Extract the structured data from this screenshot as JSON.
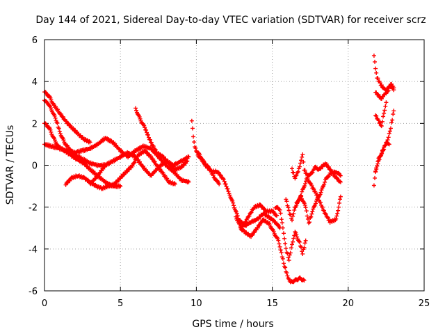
{
  "chart_data": {
    "type": "scatter",
    "title": "Day 144 of 2021, Sidereal Day-to-day VTEC variation (SDTVAR) for receiver scrz",
    "xlabel": "GPS time / hours",
    "ylabel": "SDTVAR / TECUs",
    "xlim": [
      0,
      25
    ],
    "ylim": [
      -6,
      6
    ],
    "xticks": [
      0,
      5,
      10,
      15,
      20,
      25
    ],
    "yticks": [
      -6,
      -4,
      -2,
      0,
      2,
      4,
      6
    ],
    "x_tick_labels": [
      "0",
      "5",
      "10",
      "15",
      "20",
      "25"
    ],
    "y_tick_labels": [
      "-6",
      "-4",
      "-2",
      "0",
      "2",
      "4",
      "6"
    ],
    "grid": true,
    "marker": "plus",
    "color": "#ff0000",
    "series": [
      {
        "tracks": [
          [
            [
              0.0,
              3.5
            ],
            [
              0.3,
              3.3
            ],
            [
              0.6,
              2.9
            ],
            [
              1.0,
              2.5
            ],
            [
              1.4,
              2.1
            ],
            [
              1.8,
              1.8
            ],
            [
              2.2,
              1.5
            ],
            [
              2.6,
              1.25
            ],
            [
              3.0,
              1.1
            ]
          ],
          [
            [
              0.0,
              3.1
            ],
            [
              0.2,
              3.0
            ],
            [
              0.5,
              2.6
            ],
            [
              0.8,
              2.1
            ],
            [
              1.0,
              1.6
            ],
            [
              1.3,
              1.1
            ],
            [
              1.6,
              0.8
            ],
            [
              2.0,
              0.5
            ],
            [
              2.5,
              0.3
            ],
            [
              3.0,
              0.1
            ],
            [
              3.5,
              0.0
            ],
            [
              4.0,
              0.0
            ]
          ],
          [
            [
              0.0,
              2.0
            ],
            [
              0.3,
              1.8
            ],
            [
              0.6,
              1.3
            ],
            [
              0.9,
              0.9
            ],
            [
              1.3,
              0.7
            ],
            [
              1.7,
              0.5
            ],
            [
              2.1,
              0.3
            ],
            [
              2.6,
              0.1
            ],
            [
              3.0,
              -0.2
            ],
            [
              3.5,
              -0.5
            ],
            [
              4.0,
              -0.8
            ],
            [
              4.5,
              -1.0
            ],
            [
              5.0,
              -1.0
            ]
          ],
          [
            [
              0.0,
              1.0
            ],
            [
              0.5,
              0.9
            ],
            [
              1.0,
              0.8
            ],
            [
              1.5,
              0.7
            ],
            [
              2.0,
              0.6
            ],
            [
              2.5,
              0.7
            ],
            [
              3.0,
              0.8
            ],
            [
              3.5,
              1.0
            ],
            [
              4.0,
              1.3
            ],
            [
              4.5,
              1.1
            ],
            [
              5.0,
              0.7
            ],
            [
              5.5,
              0.4
            ],
            [
              6.0,
              0.7
            ],
            [
              6.5,
              0.9
            ],
            [
              7.0,
              0.8
            ],
            [
              7.5,
              0.4
            ],
            [
              8.0,
              0.0
            ],
            [
              8.5,
              -0.3
            ],
            [
              9.0,
              -0.7
            ],
            [
              9.5,
              -0.8
            ]
          ],
          [
            [
              1.4,
              -0.9
            ],
            [
              1.8,
              -0.6
            ],
            [
              2.2,
              -0.5
            ],
            [
              2.6,
              -0.6
            ],
            [
              3.0,
              -0.8
            ],
            [
              3.4,
              -1.0
            ],
            [
              3.8,
              -1.1
            ],
            [
              4.2,
              -1.0
            ],
            [
              4.6,
              -0.9
            ],
            [
              5.0,
              -0.6
            ],
            [
              5.4,
              -0.3
            ],
            [
              5.8,
              0.0
            ],
            [
              6.2,
              0.5
            ],
            [
              6.6,
              0.7
            ],
            [
              7.0,
              0.4
            ],
            [
              7.4,
              0.0
            ],
            [
              7.8,
              -0.4
            ],
            [
              8.2,
              -0.8
            ],
            [
              8.6,
              -0.9
            ]
          ],
          [
            [
              3.0,
              -0.9
            ],
            [
              3.5,
              -0.5
            ],
            [
              4.0,
              0.0
            ],
            [
              4.5,
              0.2
            ],
            [
              5.0,
              0.4
            ],
            [
              5.5,
              0.6
            ],
            [
              6.0,
              0.4
            ],
            [
              6.5,
              -0.1
            ],
            [
              7.0,
              -0.5
            ],
            [
              7.5,
              -0.1
            ],
            [
              8.0,
              0.2
            ],
            [
              8.5,
              0.0
            ],
            [
              9.0,
              0.2
            ],
            [
              9.5,
              0.4
            ]
          ],
          [
            [
              6.0,
              2.7
            ],
            [
              6.3,
              2.2
            ],
            [
              6.6,
              1.8
            ],
            [
              7.0,
              1.1
            ],
            [
              7.4,
              0.6
            ],
            [
              7.8,
              0.4
            ],
            [
              8.2,
              0.1
            ],
            [
              8.6,
              -0.2
            ],
            [
              9.0,
              -0.1
            ],
            [
              9.4,
              0.2
            ]
          ],
          [
            [
              9.7,
              2.1
            ],
            [
              9.8,
              1.4
            ],
            [
              9.9,
              0.9
            ],
            [
              10.1,
              0.5
            ],
            [
              10.4,
              0.2
            ],
            [
              10.8,
              -0.1
            ],
            [
              11.2,
              -0.6
            ],
            [
              11.5,
              -0.9
            ]
          ],
          [
            [
              10.0,
              0.7
            ],
            [
              10.3,
              0.4
            ],
            [
              10.6,
              0.0
            ],
            [
              11.0,
              -0.3
            ],
            [
              11.4,
              -0.3
            ],
            [
              11.8,
              -0.7
            ],
            [
              12.2,
              -1.4
            ],
            [
              12.5,
              -2.0
            ],
            [
              12.8,
              -2.6
            ],
            [
              13.2,
              -2.9
            ],
            [
              13.6,
              -2.7
            ],
            [
              14.0,
              -2.6
            ],
            [
              14.4,
              -2.3
            ],
            [
              14.8,
              -2.5
            ],
            [
              15.2,
              -2.7
            ],
            [
              15.5,
              -3.0
            ]
          ],
          [
            [
              12.6,
              -2.5
            ],
            [
              13.0,
              -3.0
            ],
            [
              13.4,
              -2.5
            ],
            [
              13.8,
              -2.0
            ],
            [
              14.2,
              -1.9
            ],
            [
              14.6,
              -2.2
            ],
            [
              15.0,
              -2.2
            ],
            [
              15.3,
              -2.4
            ]
          ],
          [
            [
              12.9,
              -3.0
            ],
            [
              13.2,
              -3.2
            ],
            [
              13.6,
              -3.4
            ],
            [
              14.0,
              -3.0
            ],
            [
              14.4,
              -2.6
            ],
            [
              14.8,
              -2.8
            ],
            [
              15.1,
              -3.2
            ],
            [
              15.4,
              -3.6
            ],
            [
              15.6,
              -4.2
            ],
            [
              15.8,
              -4.8
            ],
            [
              16.0,
              -5.3
            ],
            [
              16.2,
              -5.6
            ],
            [
              16.5,
              -5.5
            ],
            [
              16.8,
              -5.4
            ],
            [
              17.1,
              -5.5
            ]
          ],
          [
            [
              15.2,
              -2.0
            ],
            [
              15.5,
              -2.1
            ],
            [
              15.7,
              -3.0
            ],
            [
              15.9,
              -4.0
            ],
            [
              16.1,
              -4.5
            ],
            [
              16.3,
              -3.8
            ],
            [
              16.5,
              -3.2
            ],
            [
              16.8,
              -3.7
            ],
            [
              17.0,
              -4.2
            ],
            [
              17.2,
              -3.6
            ]
          ],
          [
            [
              15.9,
              -1.6
            ],
            [
              16.1,
              -2.2
            ],
            [
              16.3,
              -2.6
            ],
            [
              16.5,
              -2.0
            ],
            [
              16.8,
              -1.6
            ],
            [
              17.0,
              -1.2
            ],
            [
              17.3,
              -0.6
            ],
            [
              17.6,
              -1.0
            ],
            [
              18.0,
              -1.5
            ],
            [
              18.4,
              -2.2
            ],
            [
              18.8,
              -2.7
            ],
            [
              19.2,
              -2.6
            ],
            [
              19.5,
              -1.5
            ]
          ],
          [
            [
              16.3,
              -0.2
            ],
            [
              16.5,
              -0.6
            ],
            [
              16.7,
              -0.3
            ],
            [
              16.9,
              0.2
            ],
            [
              17.0,
              0.5
            ],
            [
              17.1,
              -0.2
            ],
            [
              17.3,
              -0.5
            ],
            [
              17.6,
              -0.4
            ],
            [
              17.8,
              -0.1
            ],
            [
              18.1,
              -0.2
            ],
            [
              18.5,
              0.1
            ],
            [
              18.9,
              -0.3
            ],
            [
              19.2,
              -0.6
            ],
            [
              19.5,
              -0.8
            ]
          ],
          [
            [
              16.6,
              -1.8
            ],
            [
              16.9,
              -1.5
            ],
            [
              17.2,
              -2.0
            ],
            [
              17.4,
              -2.8
            ],
            [
              17.6,
              -2.3
            ],
            [
              17.9,
              -1.7
            ],
            [
              18.2,
              -1.3
            ],
            [
              18.5,
              -0.7
            ],
            [
              18.8,
              -0.4
            ],
            [
              19.2,
              -0.3
            ],
            [
              19.5,
              -0.5
            ]
          ],
          [
            [
              21.7,
              5.2
            ],
            [
              21.8,
              4.6
            ],
            [
              21.9,
              4.2
            ],
            [
              22.1,
              3.9
            ],
            [
              22.3,
              3.7
            ],
            [
              22.5,
              3.6
            ],
            [
              22.8,
              3.8
            ],
            [
              23.0,
              3.6
            ]
          ],
          [
            [
              21.8,
              3.5
            ],
            [
              22.0,
              3.3
            ],
            [
              22.2,
              3.2
            ],
            [
              22.4,
              3.4
            ],
            [
              22.6,
              3.5
            ],
            [
              22.8,
              3.9
            ],
            [
              23.0,
              3.7
            ]
          ],
          [
            [
              21.8,
              2.4
            ],
            [
              22.0,
              2.1
            ],
            [
              22.2,
              1.9
            ],
            [
              22.3,
              2.3
            ],
            [
              22.4,
              2.6
            ],
            [
              22.5,
              3.0
            ]
          ],
          [
            [
              21.7,
              -1.0
            ],
            [
              21.8,
              -0.3
            ],
            [
              22.0,
              0.2
            ],
            [
              22.2,
              0.6
            ],
            [
              22.4,
              0.9
            ],
            [
              22.6,
              1.2
            ],
            [
              22.8,
              1.8
            ],
            [
              23.0,
              2.6
            ]
          ],
          [
            [
              21.8,
              -0.3
            ],
            [
              22.0,
              0.3
            ],
            [
              22.3,
              0.7
            ],
            [
              22.5,
              1.1
            ],
            [
              22.7,
              1.0
            ]
          ]
        ]
      }
    ]
  }
}
